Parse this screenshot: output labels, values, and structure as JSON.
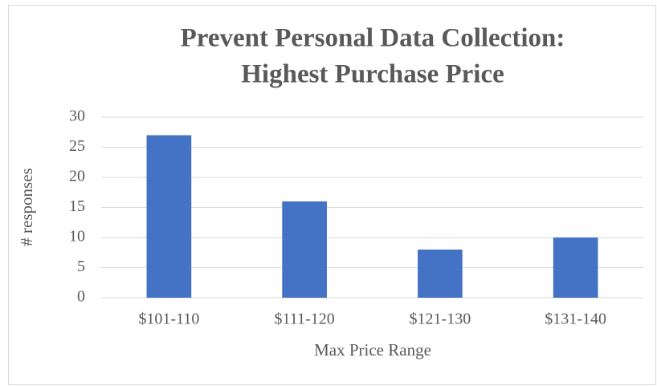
{
  "chart_data": {
    "type": "bar",
    "title": [
      "Prevent Personal Data Collection:",
      "Highest Purchase Price"
    ],
    "x_label": "Max Price Range",
    "y_label": "# responses",
    "categories": [
      "$101-110",
      "$111-120",
      "$121-130",
      "$131-140"
    ],
    "values": [
      27,
      16,
      8,
      10
    ],
    "color": "#4472c4",
    "ylim": [
      0,
      30
    ],
    "yticks": [
      0,
      5,
      10,
      15,
      20,
      25,
      30
    ],
    "grid": true
  }
}
